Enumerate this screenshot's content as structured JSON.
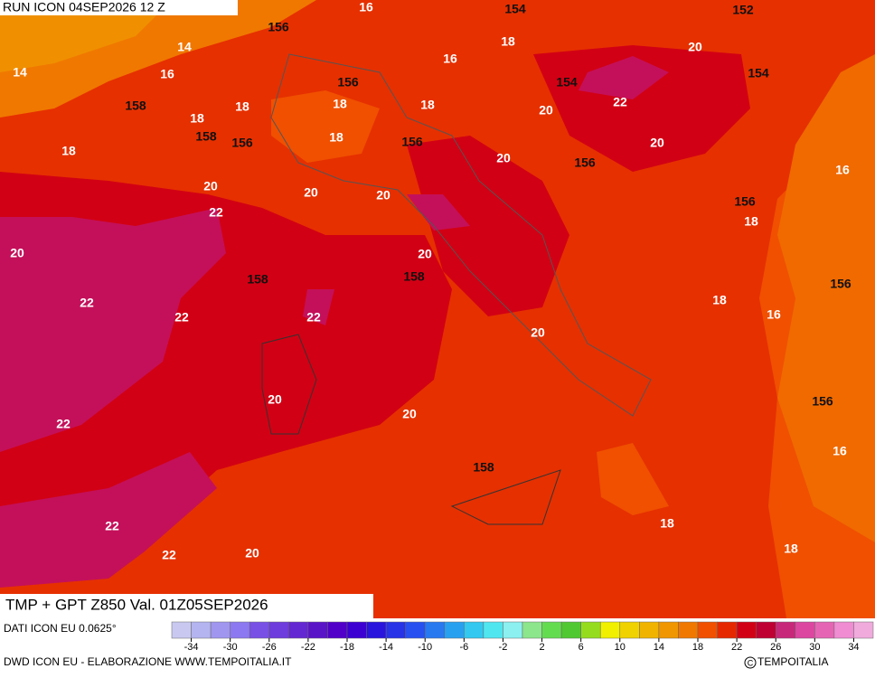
{
  "header": {
    "run": "RUN ICON 04SEP2026 12 Z"
  },
  "map": {
    "temperature_labels": [
      "16",
      "14",
      "14",
      "16",
      "18",
      "20",
      "22",
      "16",
      "18",
      "18",
      "18",
      "18",
      "20",
      "18",
      "20",
      "18",
      "20",
      "16",
      "20",
      "20",
      "20",
      "22",
      "18",
      "20",
      "20",
      "22",
      "22",
      "22",
      "18",
      "16",
      "20",
      "20",
      "20",
      "22",
      "16",
      "18",
      "22",
      "22",
      "20",
      "18"
    ],
    "height_labels": [
      "154",
      "152",
      "156",
      "154",
      "156",
      "154",
      "158",
      "158",
      "156",
      "156",
      "156",
      "156",
      "158",
      "158",
      "156",
      "156",
      "158"
    ]
  },
  "footer": {
    "title": "TMP + GPT Z850 Val. 01Z05SEP2026",
    "source": "DATI ICON EU 0.0625°",
    "credit": "DWD ICON EU - ELABORAZIONE WWW.TEMPOITALIA.IT",
    "copyright": "TEMPOITALIA"
  },
  "scale": {
    "lim": [
      -36,
      36
    ],
    "ticks": [
      -34,
      -30,
      -26,
      -22,
      -18,
      -14,
      -10,
      -6,
      -2,
      2,
      6,
      10,
      14,
      18,
      22,
      26,
      30,
      34
    ],
    "colors": [
      "#c8c8f0",
      "#b4b4f0",
      "#a096f0",
      "#8c78f0",
      "#7850e6",
      "#6e3cdc",
      "#6428d2",
      "#5a14c8",
      "#5000c8",
      "#3c00d2",
      "#2814dc",
      "#2832e6",
      "#2850f0",
      "#2878f0",
      "#28a0f0",
      "#32c8f0",
      "#50e6f0",
      "#8cf0f0",
      "#8ce68c",
      "#64dc50",
      "#50c832",
      "#96dc1e",
      "#f0f000",
      "#f0d200",
      "#f0b400",
      "#f09600",
      "#f07800",
      "#f05000",
      "#e62800",
      "#d20014",
      "#be0032",
      "#c8287a",
      "#dc46a0",
      "#e664b4",
      "#f08cd2",
      "#f0aadc"
    ]
  }
}
